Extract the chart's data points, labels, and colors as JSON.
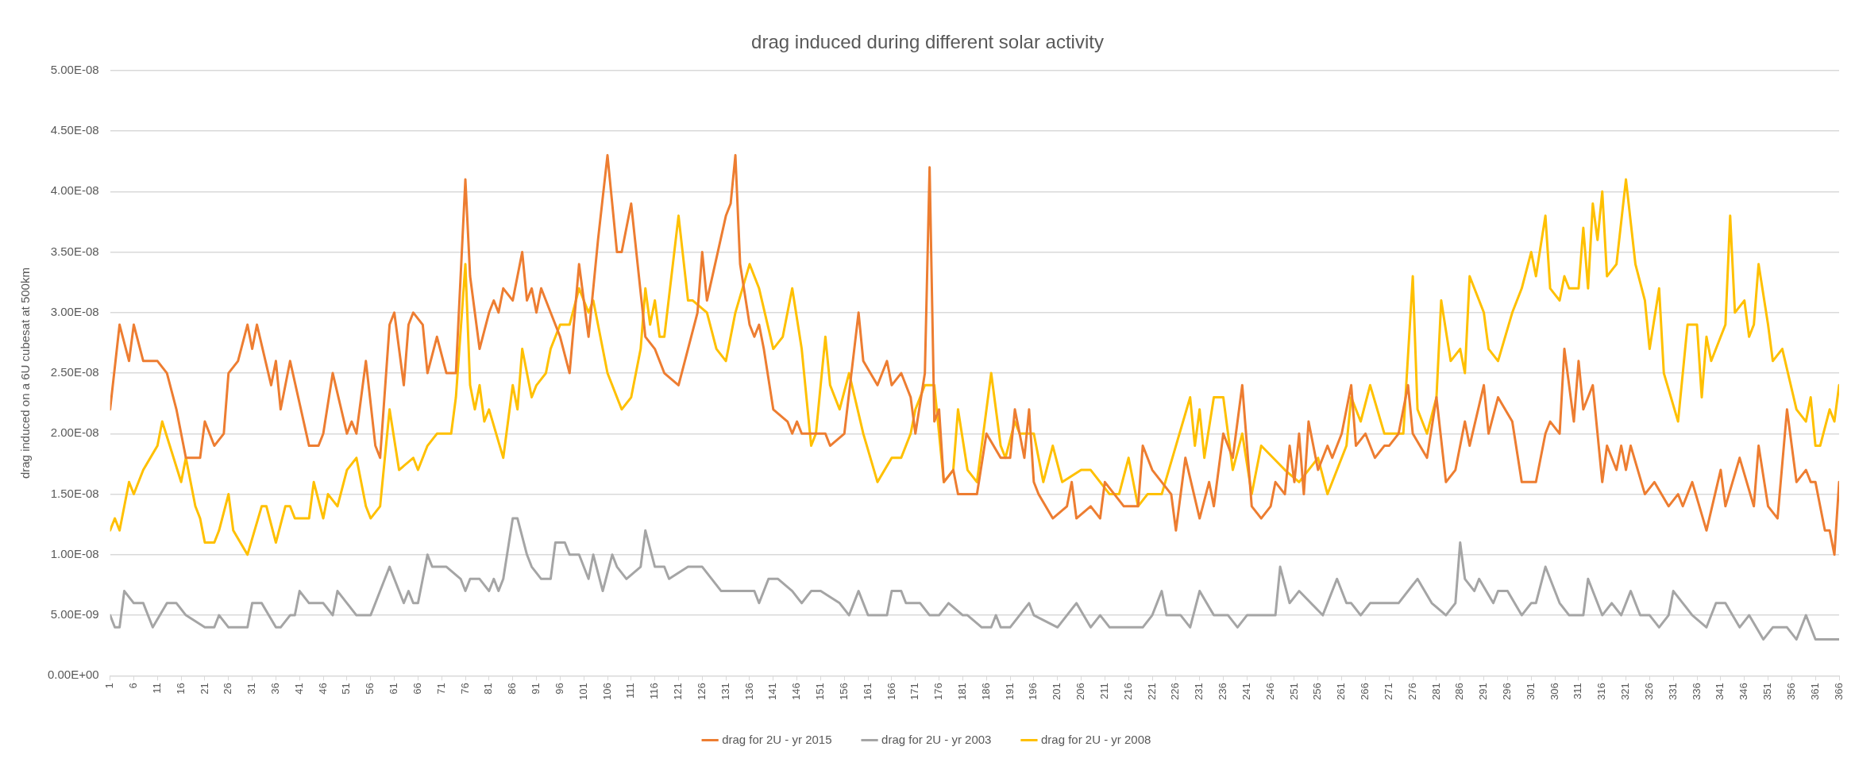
{
  "chart_data": {
    "type": "line",
    "title": "drag induced during different solar activity",
    "ylabel": "drag induced on a 6U cubesat at 500km",
    "xlim": [
      1,
      366
    ],
    "xticks": [
      1,
      6,
      11,
      16,
      21,
      26,
      31,
      36,
      41,
      46,
      51,
      56,
      61,
      66,
      71,
      76,
      81,
      86,
      91,
      96,
      101,
      106,
      111,
      116,
      121,
      126,
      131,
      136,
      141,
      146,
      151,
      156,
      161,
      166,
      171,
      176,
      181,
      186,
      191,
      196,
      201,
      206,
      211,
      216,
      221,
      226,
      231,
      236,
      241,
      246,
      251,
      256,
      261,
      266,
      271,
      276,
      281,
      286,
      291,
      296,
      301,
      306,
      311,
      316,
      321,
      326,
      331,
      336,
      341,
      346,
      351,
      356,
      361,
      366
    ],
    "ylim": [
      0,
      5e-08
    ],
    "yticks": [
      {
        "value": 0,
        "label": "0.00E+00"
      },
      {
        "value": 5e-09,
        "label": "5.00E-09"
      },
      {
        "value": 1e-08,
        "label": "1.00E-08"
      },
      {
        "value": 1.5e-08,
        "label": "1.50E-08"
      },
      {
        "value": 2e-08,
        "label": "2.00E-08"
      },
      {
        "value": 2.5e-08,
        "label": "2.50E-08"
      },
      {
        "value": 3e-08,
        "label": "3.00E-08"
      },
      {
        "value": 3.5e-08,
        "label": "3.50E-08"
      },
      {
        "value": 4e-08,
        "label": "4.00E-08"
      },
      {
        "value": 4.5e-08,
        "label": "4.50E-08"
      },
      {
        "value": 5e-08,
        "label": "5.00E-08"
      }
    ],
    "grid": "y",
    "legend": "bottom",
    "marker": "none",
    "line_style": "solid",
    "series": [
      {
        "name": "drag for 2U - yr 2015",
        "color": "#ed7d31",
        "x": [
          1,
          3,
          5,
          6,
          8,
          11,
          13,
          15,
          17,
          20,
          21,
          23,
          25,
          26,
          28,
          30,
          31,
          32,
          35,
          36,
          37,
          39,
          43,
          45,
          46,
          48,
          51,
          52,
          53,
          55,
          57,
          58,
          60,
          61,
          62,
          63,
          64,
          65,
          67,
          68,
          70,
          72,
          74,
          76,
          77,
          79,
          81,
          82,
          83,
          84,
          86,
          88,
          89,
          90,
          91,
          92,
          94,
          96,
          98,
          100,
          102,
          104,
          106,
          108,
          109,
          111,
          114,
          116,
          118,
          121,
          123,
          125,
          126,
          127,
          131,
          132,
          133,
          134,
          136,
          137,
          138,
          139,
          141,
          144,
          145,
          146,
          147,
          150,
          152,
          153,
          156,
          159,
          160,
          163,
          165,
          166,
          168,
          170,
          171,
          173,
          174,
          175,
          176,
          177,
          179,
          180,
          183,
          184,
          186,
          189,
          191,
          192,
          194,
          195,
          196,
          197,
          200,
          203,
          204,
          205,
          208,
          210,
          211,
          213,
          215,
          218,
          219,
          221,
          225,
          226,
          228,
          231,
          233,
          234,
          236,
          238,
          240,
          242,
          244,
          246,
          247,
          249,
          250,
          251,
          252,
          253,
          254,
          256,
          258,
          259,
          261,
          263,
          264,
          266,
          268,
          270,
          271,
          273,
          275,
          276,
          279,
          281,
          283,
          285,
          287,
          288,
          291,
          292,
          294,
          297,
          299,
          302,
          304,
          305,
          307,
          308,
          310,
          311,
          312,
          314,
          316,
          317,
          319,
          320,
          321,
          322,
          325,
          327,
          330,
          332,
          333,
          335,
          338,
          341,
          342,
          345,
          348,
          349,
          351,
          353,
          355,
          357,
          359,
          360,
          361,
          363,
          364,
          365,
          366
        ],
        "values": [
          2.2e-08,
          2.9e-08,
          2.6e-08,
          2.9e-08,
          2.6e-08,
          2.6e-08,
          2.5e-08,
          2.2e-08,
          1.8e-08,
          1.8e-08,
          2.1e-08,
          1.9e-08,
          2e-08,
          2.5e-08,
          2.6e-08,
          2.9e-08,
          2.7e-08,
          2.9e-08,
          2.4e-08,
          2.6e-08,
          2.2e-08,
          2.6e-08,
          1.9e-08,
          1.9e-08,
          2e-08,
          2.5e-08,
          2e-08,
          2.1e-08,
          2e-08,
          2.6e-08,
          1.9e-08,
          1.8e-08,
          2.9e-08,
          3e-08,
          2.7e-08,
          2.4e-08,
          2.9e-08,
          3e-08,
          2.9e-08,
          2.5e-08,
          2.8e-08,
          2.5e-08,
          2.5e-08,
          4.1e-08,
          3.3e-08,
          2.7e-08,
          3e-08,
          3.1e-08,
          3e-08,
          3.2e-08,
          3.1e-08,
          3.5e-08,
          3.1e-08,
          3.2e-08,
          3e-08,
          3.2e-08,
          3e-08,
          2.8e-08,
          2.5e-08,
          3.4e-08,
          2.8e-08,
          3.6e-08,
          4.3e-08,
          3.5e-08,
          3.5e-08,
          3.9e-08,
          2.8e-08,
          2.7e-08,
          2.5e-08,
          2.4e-08,
          2.7e-08,
          3e-08,
          3.5e-08,
          3.1e-08,
          3.8e-08,
          3.9e-08,
          4.3e-08,
          3.4e-08,
          2.9e-08,
          2.8e-08,
          2.9e-08,
          2.7e-08,
          2.2e-08,
          2.1e-08,
          2e-08,
          2.1e-08,
          2e-08,
          2e-08,
          2e-08,
          1.9e-08,
          2e-08,
          3e-08,
          2.6e-08,
          2.4e-08,
          2.6e-08,
          2.4e-08,
          2.5e-08,
          2.3e-08,
          2e-08,
          2.5e-08,
          4.2e-08,
          2.1e-08,
          2.2e-08,
          1.6e-08,
          1.7e-08,
          1.5e-08,
          1.5e-08,
          1.5e-08,
          2e-08,
          1.8e-08,
          1.8e-08,
          2.2e-08,
          1.8e-08,
          2.2e-08,
          1.6e-08,
          1.5e-08,
          1.3e-08,
          1.4e-08,
          1.6e-08,
          1.3e-08,
          1.4e-08,
          1.3e-08,
          1.6e-08,
          1.5e-08,
          1.4e-08,
          1.4e-08,
          1.9e-08,
          1.7e-08,
          1.5e-08,
          1.2e-08,
          1.8e-08,
          1.3e-08,
          1.6e-08,
          1.4e-08,
          2e-08,
          1.8e-08,
          2.4e-08,
          1.4e-08,
          1.3e-08,
          1.4e-08,
          1.6e-08,
          1.5e-08,
          1.9e-08,
          1.6e-08,
          2e-08,
          1.5e-08,
          2.1e-08,
          1.7e-08,
          1.9e-08,
          1.8e-08,
          2e-08,
          2.4e-08,
          1.9e-08,
          2e-08,
          1.8e-08,
          1.9e-08,
          1.9e-08,
          2e-08,
          2.4e-08,
          2e-08,
          1.8e-08,
          2.3e-08,
          1.6e-08,
          1.7e-08,
          2.1e-08,
          1.9e-08,
          2.4e-08,
          2e-08,
          2.3e-08,
          2.1e-08,
          1.6e-08,
          1.6e-08,
          2e-08,
          2.1e-08,
          2e-08,
          2.7e-08,
          2.1e-08,
          2.6e-08,
          2.2e-08,
          2.4e-08,
          1.6e-08,
          1.9e-08,
          1.7e-08,
          1.9e-08,
          1.7e-08,
          1.9e-08,
          1.5e-08,
          1.6e-08,
          1.4e-08,
          1.5e-08,
          1.4e-08,
          1.6e-08,
          1.2e-08,
          1.7e-08,
          1.4e-08,
          1.8e-08,
          1.4e-08,
          1.9e-08,
          1.4e-08,
          1.3e-08,
          2.2e-08,
          1.6e-08,
          1.7e-08,
          1.6e-08,
          1.6e-08,
          1.2e-08,
          1.2e-08,
          1e-08,
          1.6e-08
        ]
      },
      {
        "name": "drag for 2U - yr 2003",
        "color": "#a5a5a5",
        "x": [
          1,
          2,
          3,
          4,
          6,
          8,
          10,
          13,
          15,
          17,
          21,
          23,
          24,
          26,
          29,
          30,
          31,
          33,
          36,
          37,
          39,
          40,
          41,
          43,
          46,
          48,
          49,
          51,
          53,
          56,
          58,
          60,
          62,
          63,
          64,
          65,
          66,
          68,
          69,
          71,
          72,
          75,
          76,
          77,
          79,
          81,
          82,
          83,
          84,
          86,
          87,
          89,
          90,
          92,
          94,
          95,
          97,
          98,
          100,
          102,
          103,
          105,
          107,
          108,
          110,
          113,
          114,
          116,
          118,
          119,
          123,
          124,
          126,
          128,
          130,
          133,
          136,
          137,
          138,
          140,
          142,
          145,
          147,
          149,
          151,
          155,
          157,
          159,
          161,
          165,
          166,
          168,
          169,
          171,
          172,
          174,
          176,
          178,
          181,
          182,
          185,
          187,
          188,
          189,
          191,
          193,
          195,
          196,
          201,
          205,
          208,
          210,
          212,
          216,
          217,
          219,
          221,
          223,
          224,
          227,
          229,
          231,
          234,
          237,
          239,
          241,
          243,
          245,
          247,
          248,
          250,
          252,
          257,
          260,
          262,
          263,
          265,
          267,
          270,
          272,
          273,
          277,
          280,
          283,
          285,
          286,
          287,
          289,
          290,
          293,
          294,
          296,
          299,
          301,
          302,
          304,
          307,
          309,
          312,
          313,
          314,
          316,
          318,
          320,
          322,
          324,
          326,
          328,
          330,
          331,
          333,
          335,
          338,
          340,
          342,
          345,
          347,
          350,
          352,
          354,
          355,
          357,
          359,
          361,
          364,
          366
        ],
        "values": [
          5e-09,
          4e-09,
          4e-09,
          7e-09,
          6e-09,
          6e-09,
          4e-09,
          6e-09,
          6e-09,
          5e-09,
          4e-09,
          4e-09,
          5e-09,
          4e-09,
          4e-09,
          4e-09,
          6e-09,
          6e-09,
          4e-09,
          4e-09,
          5e-09,
          5e-09,
          7e-09,
          6e-09,
          6e-09,
          5e-09,
          7e-09,
          6e-09,
          5e-09,
          5e-09,
          7e-09,
          9e-09,
          7e-09,
          6e-09,
          7e-09,
          6e-09,
          6e-09,
          1e-08,
          9e-09,
          9e-09,
          9e-09,
          8e-09,
          7e-09,
          8e-09,
          8e-09,
          7e-09,
          8e-09,
          7e-09,
          8e-09,
          1.3e-08,
          1.3e-08,
          1e-08,
          9e-09,
          8e-09,
          8e-09,
          1.1e-08,
          1.1e-08,
          1e-08,
          1e-08,
          8e-09,
          1e-08,
          7e-09,
          1e-08,
          9e-09,
          8e-09,
          9e-09,
          1.2e-08,
          9e-09,
          9e-09,
          8e-09,
          9e-09,
          9e-09,
          9e-09,
          8e-09,
          7e-09,
          7e-09,
          7e-09,
          7e-09,
          6e-09,
          8e-09,
          8e-09,
          7e-09,
          6e-09,
          7e-09,
          7e-09,
          6e-09,
          5e-09,
          7e-09,
          5e-09,
          5e-09,
          7e-09,
          7e-09,
          6e-09,
          6e-09,
          6e-09,
          5e-09,
          5e-09,
          6e-09,
          5e-09,
          5e-09,
          4e-09,
          4e-09,
          5e-09,
          4e-09,
          4e-09,
          5e-09,
          6e-09,
          5e-09,
          4e-09,
          6e-09,
          4e-09,
          5e-09,
          4e-09,
          4e-09,
          4e-09,
          4e-09,
          5e-09,
          7e-09,
          5e-09,
          5e-09,
          4e-09,
          7e-09,
          5e-09,
          5e-09,
          4e-09,
          5e-09,
          5e-09,
          5e-09,
          5e-09,
          9e-09,
          6e-09,
          7e-09,
          5e-09,
          8e-09,
          6e-09,
          6e-09,
          5e-09,
          6e-09,
          6e-09,
          6e-09,
          6e-09,
          8e-09,
          6e-09,
          5e-09,
          6e-09,
          1.1e-08,
          8e-09,
          7e-09,
          8e-09,
          6e-09,
          7e-09,
          7e-09,
          5e-09,
          6e-09,
          6e-09,
          9e-09,
          6e-09,
          5e-09,
          5e-09,
          8e-09,
          7e-09,
          5e-09,
          6e-09,
          5e-09,
          7e-09,
          5e-09,
          5e-09,
          4e-09,
          5e-09,
          7e-09,
          6e-09,
          5e-09,
          4e-09,
          6e-09,
          6e-09,
          4e-09,
          5e-09,
          3e-09,
          4e-09,
          4e-09,
          4e-09,
          3e-09,
          5e-09,
          3e-09,
          3e-09,
          3e-09
        ]
      },
      {
        "name": "drag for 2U - yr 2008",
        "color": "#ffc000",
        "x": [
          1,
          2,
          3,
          4,
          5,
          6,
          8,
          11,
          12,
          16,
          17,
          19,
          20,
          21,
          23,
          24,
          26,
          27,
          30,
          33,
          34,
          36,
          38,
          39,
          40,
          43,
          44,
          46,
          47,
          49,
          51,
          53,
          55,
          56,
          58,
          60,
          62,
          65,
          66,
          68,
          70,
          73,
          74,
          76,
          77,
          78,
          79,
          80,
          81,
          84,
          86,
          87,
          88,
          90,
          91,
          93,
          94,
          96,
          98,
          100,
          102,
          103,
          106,
          109,
          111,
          113,
          114,
          115,
          116,
          117,
          118,
          121,
          123,
          124,
          127,
          129,
          131,
          133,
          136,
          138,
          141,
          143,
          145,
          147,
          149,
          150,
          152,
          153,
          155,
          157,
          160,
          163,
          166,
          168,
          170,
          171,
          173,
          175,
          177,
          179,
          180,
          182,
          184,
          187,
          189,
          190,
          192,
          193,
          196,
          198,
          200,
          202,
          206,
          208,
          210,
          212,
          214,
          216,
          218,
          220,
          223,
          226,
          229,
          230,
          231,
          232,
          234,
          236,
          238,
          240,
          242,
          244,
          249,
          252,
          256,
          258,
          262,
          263,
          265,
          267,
          270,
          272,
          274,
          276,
          277,
          279,
          281,
          282,
          284,
          286,
          287,
          288,
          291,
          292,
          294,
          297,
          299,
          301,
          302,
          304,
          305,
          307,
          308,
          309,
          311,
          312,
          313,
          314,
          315,
          316,
          317,
          319,
          321,
          323,
          325,
          326,
          328,
          329,
          332,
          334,
          336,
          337,
          338,
          339,
          342,
          343,
          344,
          346,
          347,
          348,
          349,
          351,
          352,
          354,
          357,
          359,
          360,
          361,
          362,
          364,
          365,
          366
        ],
        "values": [
          1.2e-08,
          1.3e-08,
          1.2e-08,
          1.4e-08,
          1.6e-08,
          1.5e-08,
          1.7e-08,
          1.9e-08,
          2.1e-08,
          1.6e-08,
          1.8e-08,
          1.4e-08,
          1.3e-08,
          1.1e-08,
          1.1e-08,
          1.2e-08,
          1.5e-08,
          1.2e-08,
          1e-08,
          1.4e-08,
          1.4e-08,
          1.1e-08,
          1.4e-08,
          1.4e-08,
          1.3e-08,
          1.3e-08,
          1.6e-08,
          1.3e-08,
          1.5e-08,
          1.4e-08,
          1.7e-08,
          1.8e-08,
          1.4e-08,
          1.3e-08,
          1.4e-08,
          2.2e-08,
          1.7e-08,
          1.8e-08,
          1.7e-08,
          1.9e-08,
          2e-08,
          2e-08,
          2.3e-08,
          3.4e-08,
          2.4e-08,
          2.2e-08,
          2.4e-08,
          2.1e-08,
          2.2e-08,
          1.8e-08,
          2.4e-08,
          2.2e-08,
          2.7e-08,
          2.3e-08,
          2.4e-08,
          2.5e-08,
          2.7e-08,
          2.9e-08,
          2.9e-08,
          3.2e-08,
          3e-08,
          3.1e-08,
          2.5e-08,
          2.2e-08,
          2.3e-08,
          2.7e-08,
          3.2e-08,
          2.9e-08,
          3.1e-08,
          2.8e-08,
          2.8e-08,
          3.8e-08,
          3.1e-08,
          3.1e-08,
          3e-08,
          2.7e-08,
          2.6e-08,
          3e-08,
          3.4e-08,
          3.2e-08,
          2.7e-08,
          2.8e-08,
          3.2e-08,
          2.7e-08,
          1.9e-08,
          2e-08,
          2.8e-08,
          2.4e-08,
          2.2e-08,
          2.5e-08,
          2e-08,
          1.6e-08,
          1.8e-08,
          1.8e-08,
          2e-08,
          2.2e-08,
          2.4e-08,
          2.4e-08,
          1.6e-08,
          1.7e-08,
          2.2e-08,
          1.7e-08,
          1.6e-08,
          2.5e-08,
          1.9e-08,
          1.8e-08,
          2.1e-08,
          2e-08,
          2e-08,
          1.6e-08,
          1.9e-08,
          1.6e-08,
          1.7e-08,
          1.7e-08,
          1.6e-08,
          1.5e-08,
          1.5e-08,
          1.8e-08,
          1.4e-08,
          1.5e-08,
          1.5e-08,
          1.9e-08,
          2.3e-08,
          1.9e-08,
          2.2e-08,
          1.8e-08,
          2.3e-08,
          2.3e-08,
          1.7e-08,
          2e-08,
          1.5e-08,
          1.9e-08,
          1.7e-08,
          1.6e-08,
          1.8e-08,
          1.5e-08,
          1.9e-08,
          2.3e-08,
          2.1e-08,
          2.4e-08,
          2e-08,
          2e-08,
          2e-08,
          3.3e-08,
          2.2e-08,
          2e-08,
          2.3e-08,
          3.1e-08,
          2.6e-08,
          2.7e-08,
          2.5e-08,
          3.3e-08,
          3e-08,
          2.7e-08,
          2.6e-08,
          3e-08,
          3.2e-08,
          3.5e-08,
          3.3e-08,
          3.8e-08,
          3.2e-08,
          3.1e-08,
          3.3e-08,
          3.2e-08,
          3.2e-08,
          3.7e-08,
          3.2e-08,
          3.9e-08,
          3.6e-08,
          4e-08,
          3.3e-08,
          3.4e-08,
          4.1e-08,
          3.4e-08,
          3.1e-08,
          2.7e-08,
          3.2e-08,
          2.5e-08,
          2.1e-08,
          2.9e-08,
          2.9e-08,
          2.3e-08,
          2.8e-08,
          2.6e-08,
          2.9e-08,
          3.8e-08,
          3e-08,
          3.1e-08,
          2.8e-08,
          2.9e-08,
          3.4e-08,
          2.9e-08,
          2.6e-08,
          2.7e-08,
          2.2e-08,
          2.1e-08,
          2.3e-08,
          1.9e-08,
          1.9e-08,
          2.2e-08,
          2.1e-08,
          2.4e-08
        ]
      }
    ]
  }
}
